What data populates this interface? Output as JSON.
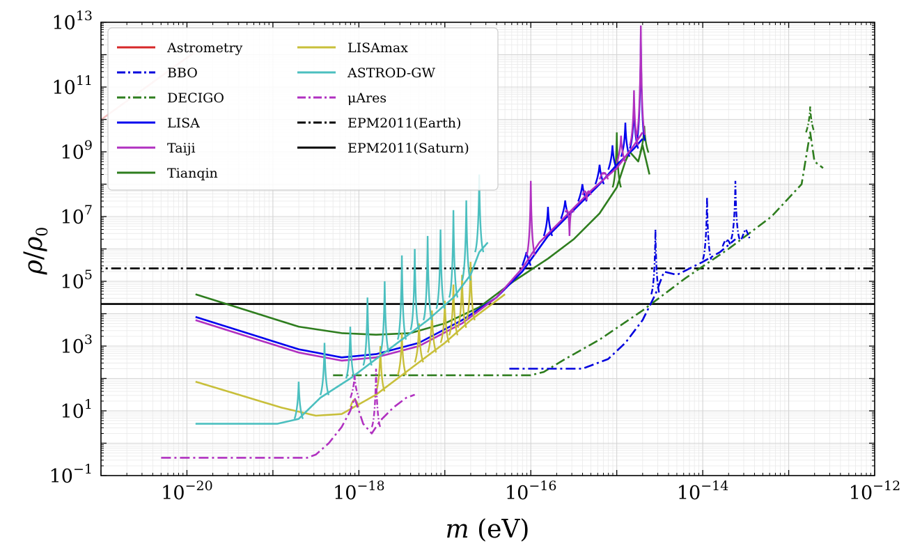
{
  "chart_data": {
    "type": "line",
    "title": "",
    "xlabel": "m (eV)",
    "ylabel": "ρ/ρ0",
    "xscale": "log",
    "yscale": "log",
    "xlim_exp": [
      -21,
      -12
    ],
    "ylim_exp": [
      -1,
      13
    ],
    "grid": true,
    "legend_position": "top-left",
    "x_ticks": [
      {
        "exp": -20,
        "base": "10",
        "sup": "−20"
      },
      {
        "exp": -18,
        "base": "10",
        "sup": "−18"
      },
      {
        "exp": -16,
        "base": "10",
        "sup": "−16"
      },
      {
        "exp": -14,
        "base": "10",
        "sup": "−14"
      },
      {
        "exp": -12,
        "base": "10",
        "sup": "−12"
      }
    ],
    "y_ticks": [
      {
        "exp": -1,
        "base": "10",
        "sup": "−1"
      },
      {
        "exp": 1,
        "base": "10",
        "sup": "1"
      },
      {
        "exp": 3,
        "base": "10",
        "sup": "3"
      },
      {
        "exp": 5,
        "base": "10",
        "sup": "5"
      },
      {
        "exp": 7,
        "base": "10",
        "sup": "7"
      },
      {
        "exp": 9,
        "base": "10",
        "sup": "9"
      },
      {
        "exp": 11,
        "base": "10",
        "sup": "11"
      },
      {
        "exp": 13,
        "base": "10",
        "sup": "13"
      }
    ],
    "series": [
      {
        "name": "Astrometry",
        "color": "#d62728",
        "dash": "solid",
        "opacity": 0.3,
        "points": [
          [
            -21.1,
            9.8
          ],
          [
            -19.9,
            12.1
          ]
        ]
      },
      {
        "name": "BBO",
        "color": "#0000dd",
        "dash": "dashdot",
        "points": [
          [
            -16.25,
            2.3
          ],
          [
            -15.8,
            2.3
          ],
          [
            -15.4,
            2.3
          ],
          [
            -15.1,
            2.6
          ],
          [
            -14.9,
            3.1
          ],
          [
            -14.7,
            3.8
          ],
          [
            -14.55,
            4.6
          ],
          [
            -14.45,
            5.3
          ],
          [
            -14.3,
            5.2
          ],
          [
            -14.15,
            5.4
          ],
          [
            -14.0,
            5.6
          ],
          [
            -13.8,
            5.9
          ],
          [
            -13.62,
            6.3
          ]
        ],
        "peaks": [
          [
            -14.55,
            6.6
          ],
          [
            -13.95,
            7.6
          ],
          [
            -13.72,
            6.2
          ],
          [
            -13.62,
            8.1
          ],
          [
            -13.5,
            6.6
          ]
        ]
      },
      {
        "name": "DECIGO",
        "color": "#2e7d1e",
        "dash": "dashdot",
        "points": [
          [
            -18.3,
            2.1
          ],
          [
            -17.5,
            2.1
          ],
          [
            -16.5,
            2.1
          ],
          [
            -16.0,
            2.1
          ],
          [
            -15.85,
            2.2
          ],
          [
            -15.6,
            2.6
          ],
          [
            -15.2,
            3.2
          ],
          [
            -14.7,
            4.1
          ],
          [
            -14.2,
            5.1
          ],
          [
            -13.7,
            6.0
          ],
          [
            -13.2,
            7.0
          ],
          [
            -12.85,
            8.0
          ],
          [
            -12.75,
            9.6
          ],
          [
            -12.7,
            8.7
          ],
          [
            -12.6,
            8.5
          ]
        ],
        "peaks": [
          [
            -12.75,
            10.4
          ]
        ]
      },
      {
        "name": "LISA",
        "color": "#0000ee",
        "dash": "solid",
        "points": [
          [
            -19.9,
            3.9
          ],
          [
            -19.3,
            3.4
          ],
          [
            -18.7,
            2.9
          ],
          [
            -18.2,
            2.65
          ],
          [
            -17.8,
            2.75
          ],
          [
            -17.3,
            3.1
          ],
          [
            -16.8,
            3.8
          ],
          [
            -16.4,
            4.5
          ],
          [
            -16.1,
            5.3
          ],
          [
            -15.8,
            6.4
          ],
          [
            -15.5,
            7.2
          ],
          [
            -15.2,
            8.0
          ],
          [
            -15.0,
            8.6
          ],
          [
            -14.8,
            9.1
          ],
          [
            -14.7,
            9.4
          ]
        ],
        "peaks": [
          [
            -16.05,
            5.9
          ],
          [
            -15.8,
            7.3
          ],
          [
            -15.6,
            7.5
          ],
          [
            -15.4,
            8.0
          ],
          [
            -15.2,
            8.6
          ],
          [
            -15.05,
            9.2
          ],
          [
            -14.9,
            9.9
          ],
          [
            -14.8,
            10.5
          ],
          [
            -14.72,
            12.7
          ]
        ]
      },
      {
        "name": "Taiji",
        "color": "#b030c0",
        "dash": "solid",
        "points": [
          [
            -19.9,
            3.8
          ],
          [
            -19.3,
            3.3
          ],
          [
            -18.7,
            2.8
          ],
          [
            -18.2,
            2.55
          ],
          [
            -17.8,
            2.65
          ],
          [
            -17.3,
            3.0
          ],
          [
            -16.8,
            3.7
          ],
          [
            -16.4,
            4.5
          ],
          [
            -16.1,
            5.4
          ],
          [
            -15.9,
            6.2
          ],
          [
            -15.6,
            7.0
          ],
          [
            -15.3,
            7.8
          ],
          [
            -15.0,
            8.5
          ],
          [
            -14.8,
            9.2
          ],
          [
            -14.7,
            9.6
          ]
        ],
        "peaks": [
          [
            -16.0,
            8.1
          ],
          [
            -15.55,
            6.4
          ],
          [
            -15.35,
            7.5
          ],
          [
            -15.15,
            8.3
          ],
          [
            -14.95,
            9.5
          ],
          [
            -14.8,
            10.9
          ],
          [
            -14.72,
            12.9
          ]
        ]
      },
      {
        "name": "Tianqin",
        "color": "#2e7d1e",
        "dash": "solid",
        "points": [
          [
            -19.9,
            4.6
          ],
          [
            -19.3,
            4.1
          ],
          [
            -18.7,
            3.6
          ],
          [
            -18.2,
            3.4
          ],
          [
            -17.8,
            3.35
          ],
          [
            -17.4,
            3.4
          ],
          [
            -17.0,
            3.7
          ],
          [
            -16.6,
            4.2
          ],
          [
            -16.2,
            5.0
          ],
          [
            -15.8,
            5.7
          ],
          [
            -15.5,
            6.3
          ],
          [
            -15.2,
            7.1
          ],
          [
            -15.0,
            7.9
          ],
          [
            -14.9,
            8.7
          ],
          [
            -14.85,
            9.0
          ],
          [
            -14.75,
            8.7
          ],
          [
            -14.7,
            9.2
          ],
          [
            -14.62,
            8.3
          ]
        ],
        "peaks": [
          [
            -15.0,
            9.6
          ],
          [
            -14.68,
            9.8
          ]
        ]
      },
      {
        "name": "LISAmax",
        "color": "#c8bf3a",
        "dash": "solid",
        "points": [
          [
            -19.9,
            1.9
          ],
          [
            -19.4,
            1.5
          ],
          [
            -18.9,
            1.1
          ],
          [
            -18.5,
            0.85
          ],
          [
            -18.2,
            0.9
          ],
          [
            -17.8,
            1.5
          ],
          [
            -17.4,
            2.3
          ],
          [
            -17.0,
            3.1
          ],
          [
            -16.7,
            3.8
          ],
          [
            -16.5,
            4.2
          ],
          [
            -16.3,
            4.6
          ]
        ],
        "peaks": [
          [
            -18.05,
            1.3
          ],
          [
            -17.75,
            3.0
          ],
          [
            -17.5,
            3.4
          ],
          [
            -17.3,
            3.7
          ],
          [
            -17.15,
            4.1
          ],
          [
            -17.0,
            4.4
          ],
          [
            -16.9,
            4.9
          ],
          [
            -16.8,
            5.2
          ],
          [
            -16.7,
            5.6
          ]
        ]
      },
      {
        "name": "ASTROD-GW",
        "color": "#4bbfbf",
        "dash": "solid",
        "points": [
          [
            -19.9,
            0.6
          ],
          [
            -19.4,
            0.6
          ],
          [
            -18.95,
            0.6
          ],
          [
            -18.7,
            0.75
          ],
          [
            -18.45,
            1.4
          ],
          [
            -18.1,
            2.0
          ],
          [
            -17.8,
            2.6
          ],
          [
            -17.5,
            3.2
          ],
          [
            -17.2,
            3.8
          ],
          [
            -16.9,
            4.5
          ],
          [
            -16.7,
            5.2
          ],
          [
            -16.6,
            5.9
          ],
          [
            -16.5,
            6.2
          ]
        ],
        "peaks": [
          [
            -18.7,
            1.9
          ],
          [
            -18.4,
            3.1
          ],
          [
            -18.1,
            3.6
          ],
          [
            -17.9,
            4.5
          ],
          [
            -17.7,
            5.0
          ],
          [
            -17.5,
            5.8
          ],
          [
            -17.35,
            6.0
          ],
          [
            -17.2,
            6.4
          ],
          [
            -17.05,
            6.6
          ],
          [
            -16.9,
            7.2
          ],
          [
            -16.75,
            7.5
          ],
          [
            -16.6,
            8.3
          ]
        ]
      },
      {
        "name": "μAres",
        "color": "#b030c0",
        "dash": "dashdot",
        "points": [
          [
            -20.3,
            -0.45
          ],
          [
            -19.8,
            -0.45
          ],
          [
            -19.2,
            -0.45
          ],
          [
            -18.6,
            -0.45
          ],
          [
            -18.5,
            -0.35
          ],
          [
            -18.35,
            0.0
          ],
          [
            -18.2,
            0.5
          ],
          [
            -18.1,
            1.0
          ],
          [
            -18.05,
            1.4
          ],
          [
            -17.95,
            0.6
          ],
          [
            -17.85,
            0.3
          ],
          [
            -17.75,
            0.7
          ],
          [
            -17.6,
            1.1
          ],
          [
            -17.45,
            1.4
          ],
          [
            -17.35,
            1.5
          ]
        ],
        "peaks": [
          [
            -18.05,
            2.1
          ],
          [
            -17.8,
            2.3
          ]
        ]
      },
      {
        "name": "EPM2011(Earth)",
        "color": "#000000",
        "dash": "dashdot",
        "points": [
          [
            -21.1,
            5.4
          ],
          [
            -11.95,
            5.4
          ]
        ]
      },
      {
        "name": "EPM2011(Saturn)",
        "color": "#000000",
        "dash": "solid",
        "points": [
          [
            -21.1,
            4.3
          ],
          [
            -11.95,
            4.3
          ]
        ]
      }
    ]
  }
}
